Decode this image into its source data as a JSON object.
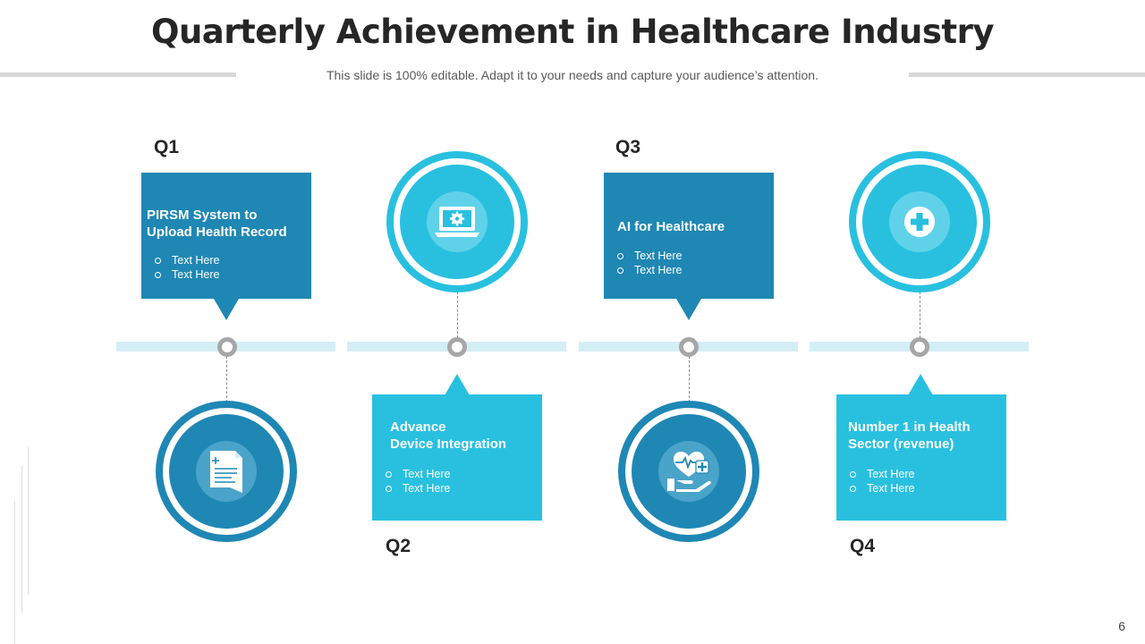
{
  "slide": {
    "title": "Quarterly Achievement in Healthcare Industry",
    "subtitle": "This slide is 100% editable. Adapt it to your needs and capture your audience’s attention.",
    "page_number": "6"
  },
  "quarters": [
    {
      "label": "Q1",
      "title_line1": "PIRSM System to",
      "title_line2": "Upload Health Record",
      "bullets": [
        "Text Here",
        "Text Here"
      ],
      "icon": "medical-report-icon"
    },
    {
      "label": "Q2",
      "title_line1": "Advance",
      "title_line2": "Device Integration",
      "bullets": [
        "Text Here",
        "Text Here"
      ],
      "icon": "laptop-gear-icon"
    },
    {
      "label": "Q3",
      "title_line1": "AI for Healthcare",
      "title_line2": "",
      "bullets": [
        "Text Here",
        "Text Here"
      ],
      "icon": "heart-in-hand-icon"
    },
    {
      "label": "Q4",
      "title_line1": "Number 1 in Health",
      "title_line2": "Sector (revenue)",
      "bullets": [
        "Text Here",
        "Text Here"
      ],
      "icon": "medical-cross-icon"
    }
  ],
  "colors": {
    "dark_blue": "#1f87b4",
    "light_blue": "#29c0e0",
    "track": "#d4eef6",
    "node_ring": "#a6a6a6"
  }
}
